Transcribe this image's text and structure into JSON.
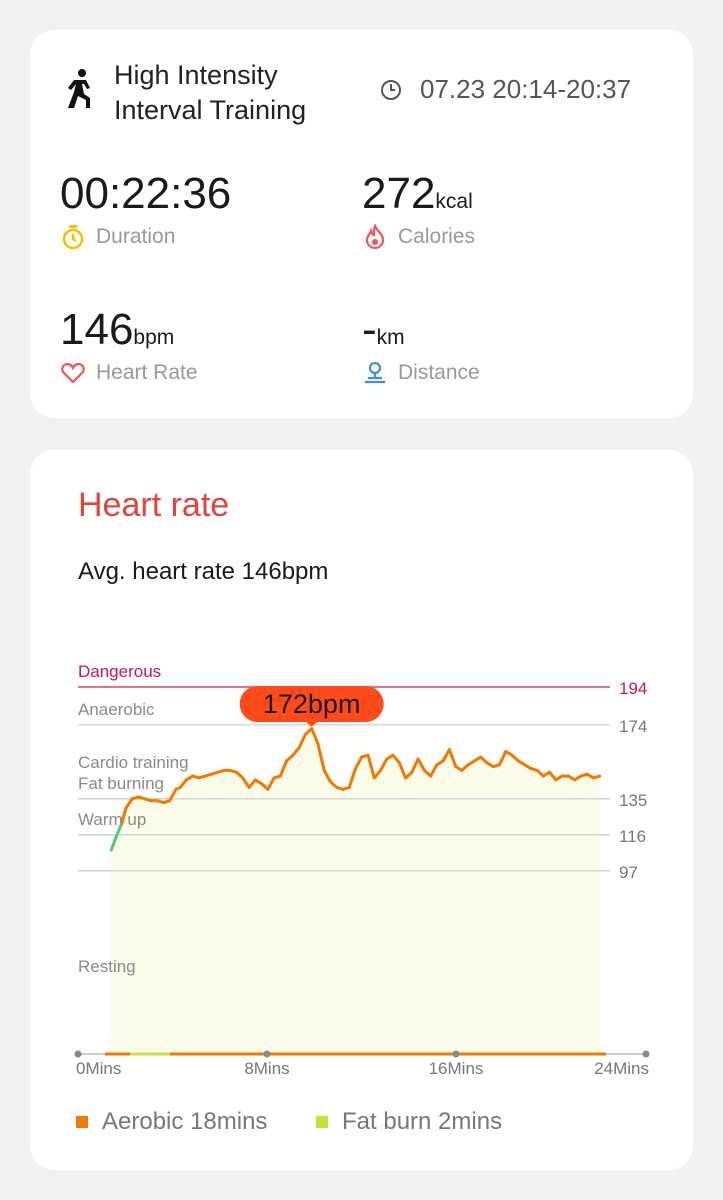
{
  "activity": {
    "title_line1": "High Intensity",
    "title_line2": "Interval Training",
    "time_range": "07.23 20:14-20:37"
  },
  "metrics": {
    "duration": {
      "value": "00:22:36",
      "unit": "",
      "label": "Duration",
      "icon": "stopwatch-icon",
      "color": "#f2c100"
    },
    "calories": {
      "value": "272",
      "unit": "kcal",
      "label": "Calories",
      "icon": "flame-icon",
      "color": "#f05454"
    },
    "heart_rate": {
      "value": "146",
      "unit": "bpm",
      "label": "Heart Rate",
      "icon": "heart-icon",
      "color": "#f05454"
    },
    "distance": {
      "value": "-",
      "unit": "km",
      "label": "Distance",
      "icon": "route-icon",
      "color": "#3f8fd8"
    }
  },
  "heart_rate_card": {
    "title": "Heart rate",
    "avg_text": "Avg. heart rate 146bpm",
    "title_color": "#e0443b"
  },
  "chart_data": {
    "type": "line",
    "peak_label": "172bpm",
    "y_ticks": [
      194,
      174,
      135,
      116,
      97
    ],
    "x_ticks": [
      "0Mins",
      "8Mins",
      "16Mins",
      "24Mins"
    ],
    "xlim": [
      0,
      24
    ],
    "zones": [
      {
        "name": "Dangerous",
        "bpm": 194
      },
      {
        "name": "Anaerobic",
        "bpm": 174
      },
      {
        "name": "Cardio training",
        "bpm": 155
      },
      {
        "name": "Fat burning",
        "bpm": 135
      },
      {
        "name": "Warm up",
        "bpm": 116
      },
      {
        "name": "Resting",
        "bpm": 97
      }
    ],
    "series": [
      {
        "x": [
          0.3,
          0.5,
          0.8,
          1.0,
          1.3,
          1.6,
          1.9,
          2.2,
          2.5,
          2.8,
          3.1,
          3.4,
          3.6,
          3.9,
          4.2,
          4.5,
          4.8,
          5.1,
          5.4,
          5.7,
          6.0,
          6.3,
          6.6,
          6.9,
          7.2,
          7.5,
          7.8,
          8.1,
          8.4,
          8.7,
          9.0,
          9.3,
          9.6,
          9.9,
          10.2,
          10.5,
          10.8,
          11.1,
          11.4,
          11.7,
          12.0,
          12.3,
          12.6,
          12.9,
          13.2,
          13.5,
          13.8,
          14.1,
          14.4,
          14.7,
          15.0,
          15.3,
          15.6,
          15.9,
          16.2,
          16.5,
          16.8,
          17.1,
          17.4,
          17.7,
          18.0,
          18.3,
          18.6,
          18.9,
          19.2,
          19.5,
          19.8,
          20.1,
          20.4,
          20.7,
          21.0,
          21.3,
          21.6,
          21.9,
          22.2,
          22.5,
          22.8,
          23.1,
          23.4,
          23.7
        ],
        "y": [
          108,
          114,
          122,
          130,
          135,
          136,
          135,
          134,
          134,
          133,
          134,
          140,
          141,
          145,
          147,
          146,
          147,
          148,
          149,
          150,
          150,
          149,
          146,
          141,
          145,
          143,
          140,
          146,
          147,
          155,
          158,
          162,
          169,
          172,
          164,
          150,
          144,
          141,
          140,
          141,
          151,
          157,
          158,
          146,
          150,
          156,
          158,
          154,
          146,
          149,
          156,
          150,
          147,
          153,
          155,
          161,
          152,
          150,
          153,
          155,
          157,
          154,
          152,
          153,
          160,
          158,
          155,
          153,
          151,
          150,
          147,
          149,
          145,
          147,
          147,
          145,
          147,
          148,
          146,
          147
        ]
      }
    ],
    "legend": [
      {
        "label": "Aerobic 18mins",
        "color": "#f07a00"
      },
      {
        "label": "Fat burn 2mins",
        "color": "#c9e03b"
      }
    ]
  }
}
